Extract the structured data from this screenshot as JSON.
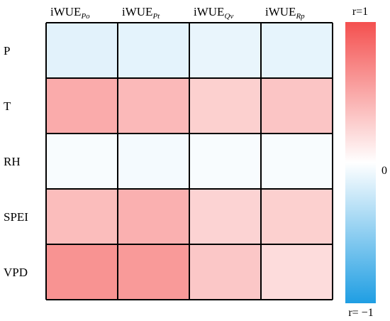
{
  "chart_data": {
    "type": "heatmap",
    "columns": [
      {
        "base": "iWUE",
        "sub": "Po"
      },
      {
        "base": "iWUE",
        "sub": "Pt"
      },
      {
        "base": "iWUE",
        "sub": "Qv"
      },
      {
        "base": "iWUE",
        "sub": "Rp"
      }
    ],
    "rows": [
      "P",
      "T",
      "RH",
      "SPEI",
      "VPD"
    ],
    "values": [
      [
        -0.13,
        -0.12,
        -0.1,
        -0.11
      ],
      [
        0.48,
        0.4,
        0.27,
        0.33
      ],
      [
        -0.03,
        -0.05,
        -0.03,
        -0.03
      ],
      [
        0.38,
        0.45,
        0.25,
        0.27
      ],
      [
        0.62,
        0.58,
        0.32,
        0.2
      ]
    ],
    "colorbar": {
      "top_label": "r=1",
      "mid_label": "0",
      "bottom_label": "r= −1",
      "colors": {
        "positive": "#f4504f",
        "zero": "#ffffff",
        "negative": "#1f9ee3"
      },
      "range": [
        -1,
        1
      ]
    },
    "grid": true
  }
}
